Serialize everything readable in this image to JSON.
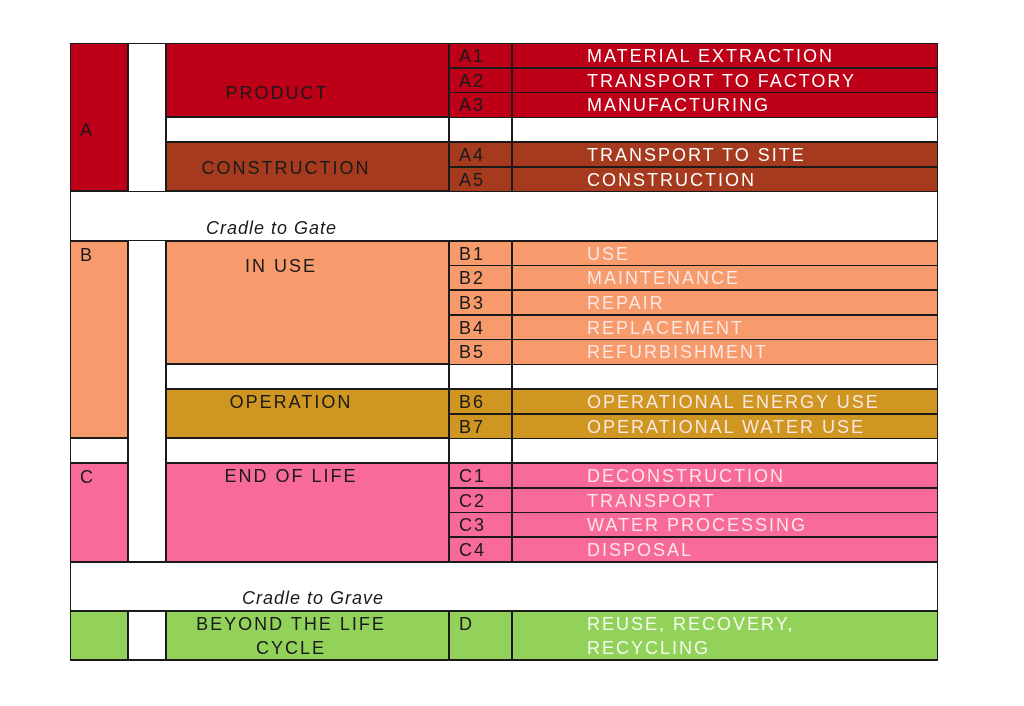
{
  "colors": {
    "product": "#bd0017",
    "construction": "#a63a1e",
    "in_use": "#f79a6c",
    "operation": "#cf9621",
    "end_of_life": "#f76a9a",
    "beyond": "#92d15a",
    "white": "#ffffff",
    "text_dark": "#1a1a1a"
  },
  "categories": [
    {
      "key": "a",
      "letter": "A"
    },
    {
      "key": "b",
      "letter": "B"
    },
    {
      "key": "c",
      "letter": "C"
    }
  ],
  "groups": [
    {
      "key": "product",
      "label": "PRODUCT"
    },
    {
      "key": "construction",
      "label": "CONSTRUCTION"
    },
    {
      "key": "in-use",
      "label": "IN USE"
    },
    {
      "key": "operation",
      "label": "OPERATION"
    },
    {
      "key": "end-of-life",
      "label": "END OF LIFE"
    },
    {
      "key": "beyond",
      "label_line1": "BEYOND THE LIFE",
      "label_line2": "CYCLE"
    }
  ],
  "cradle_to_gate": "Cradle to Gate",
  "cradle_to_grave": "Cradle to Grave",
  "stages": [
    {
      "code": "A1",
      "name": "MATERIAL EXTRACTION"
    },
    {
      "code": "A2",
      "name": "TRANSPORT TO FACTORY"
    },
    {
      "code": "A3",
      "name": "MANUFACTURING"
    },
    {
      "code": "A4",
      "name": "TRANSPORT TO SITE"
    },
    {
      "code": "A5",
      "name": "CONSTRUCTION"
    },
    {
      "code": "B1",
      "name": "USE"
    },
    {
      "code": "B2",
      "name": "MAINTENANCE"
    },
    {
      "code": "B3",
      "name": "REPAIR"
    },
    {
      "code": "B4",
      "name": "REPLACEMENT"
    },
    {
      "code": "B5",
      "name": "REFURBISHMENT"
    },
    {
      "code": "B6",
      "name": "OPERATIONAL ENERGY USE"
    },
    {
      "code": "B7",
      "name": "OPERATIONAL WATER USE"
    },
    {
      "code": "C1",
      "name": "DECONSTRUCTION"
    },
    {
      "code": "C2",
      "name": "TRANSPORT"
    },
    {
      "code": "C3",
      "name": "WATER PROCESSING"
    },
    {
      "code": "C4",
      "name": "DISPOSAL"
    },
    {
      "code": "D",
      "name_line1": "REUSE, RECOVERY,",
      "name_line2": "RECYCLING"
    }
  ]
}
